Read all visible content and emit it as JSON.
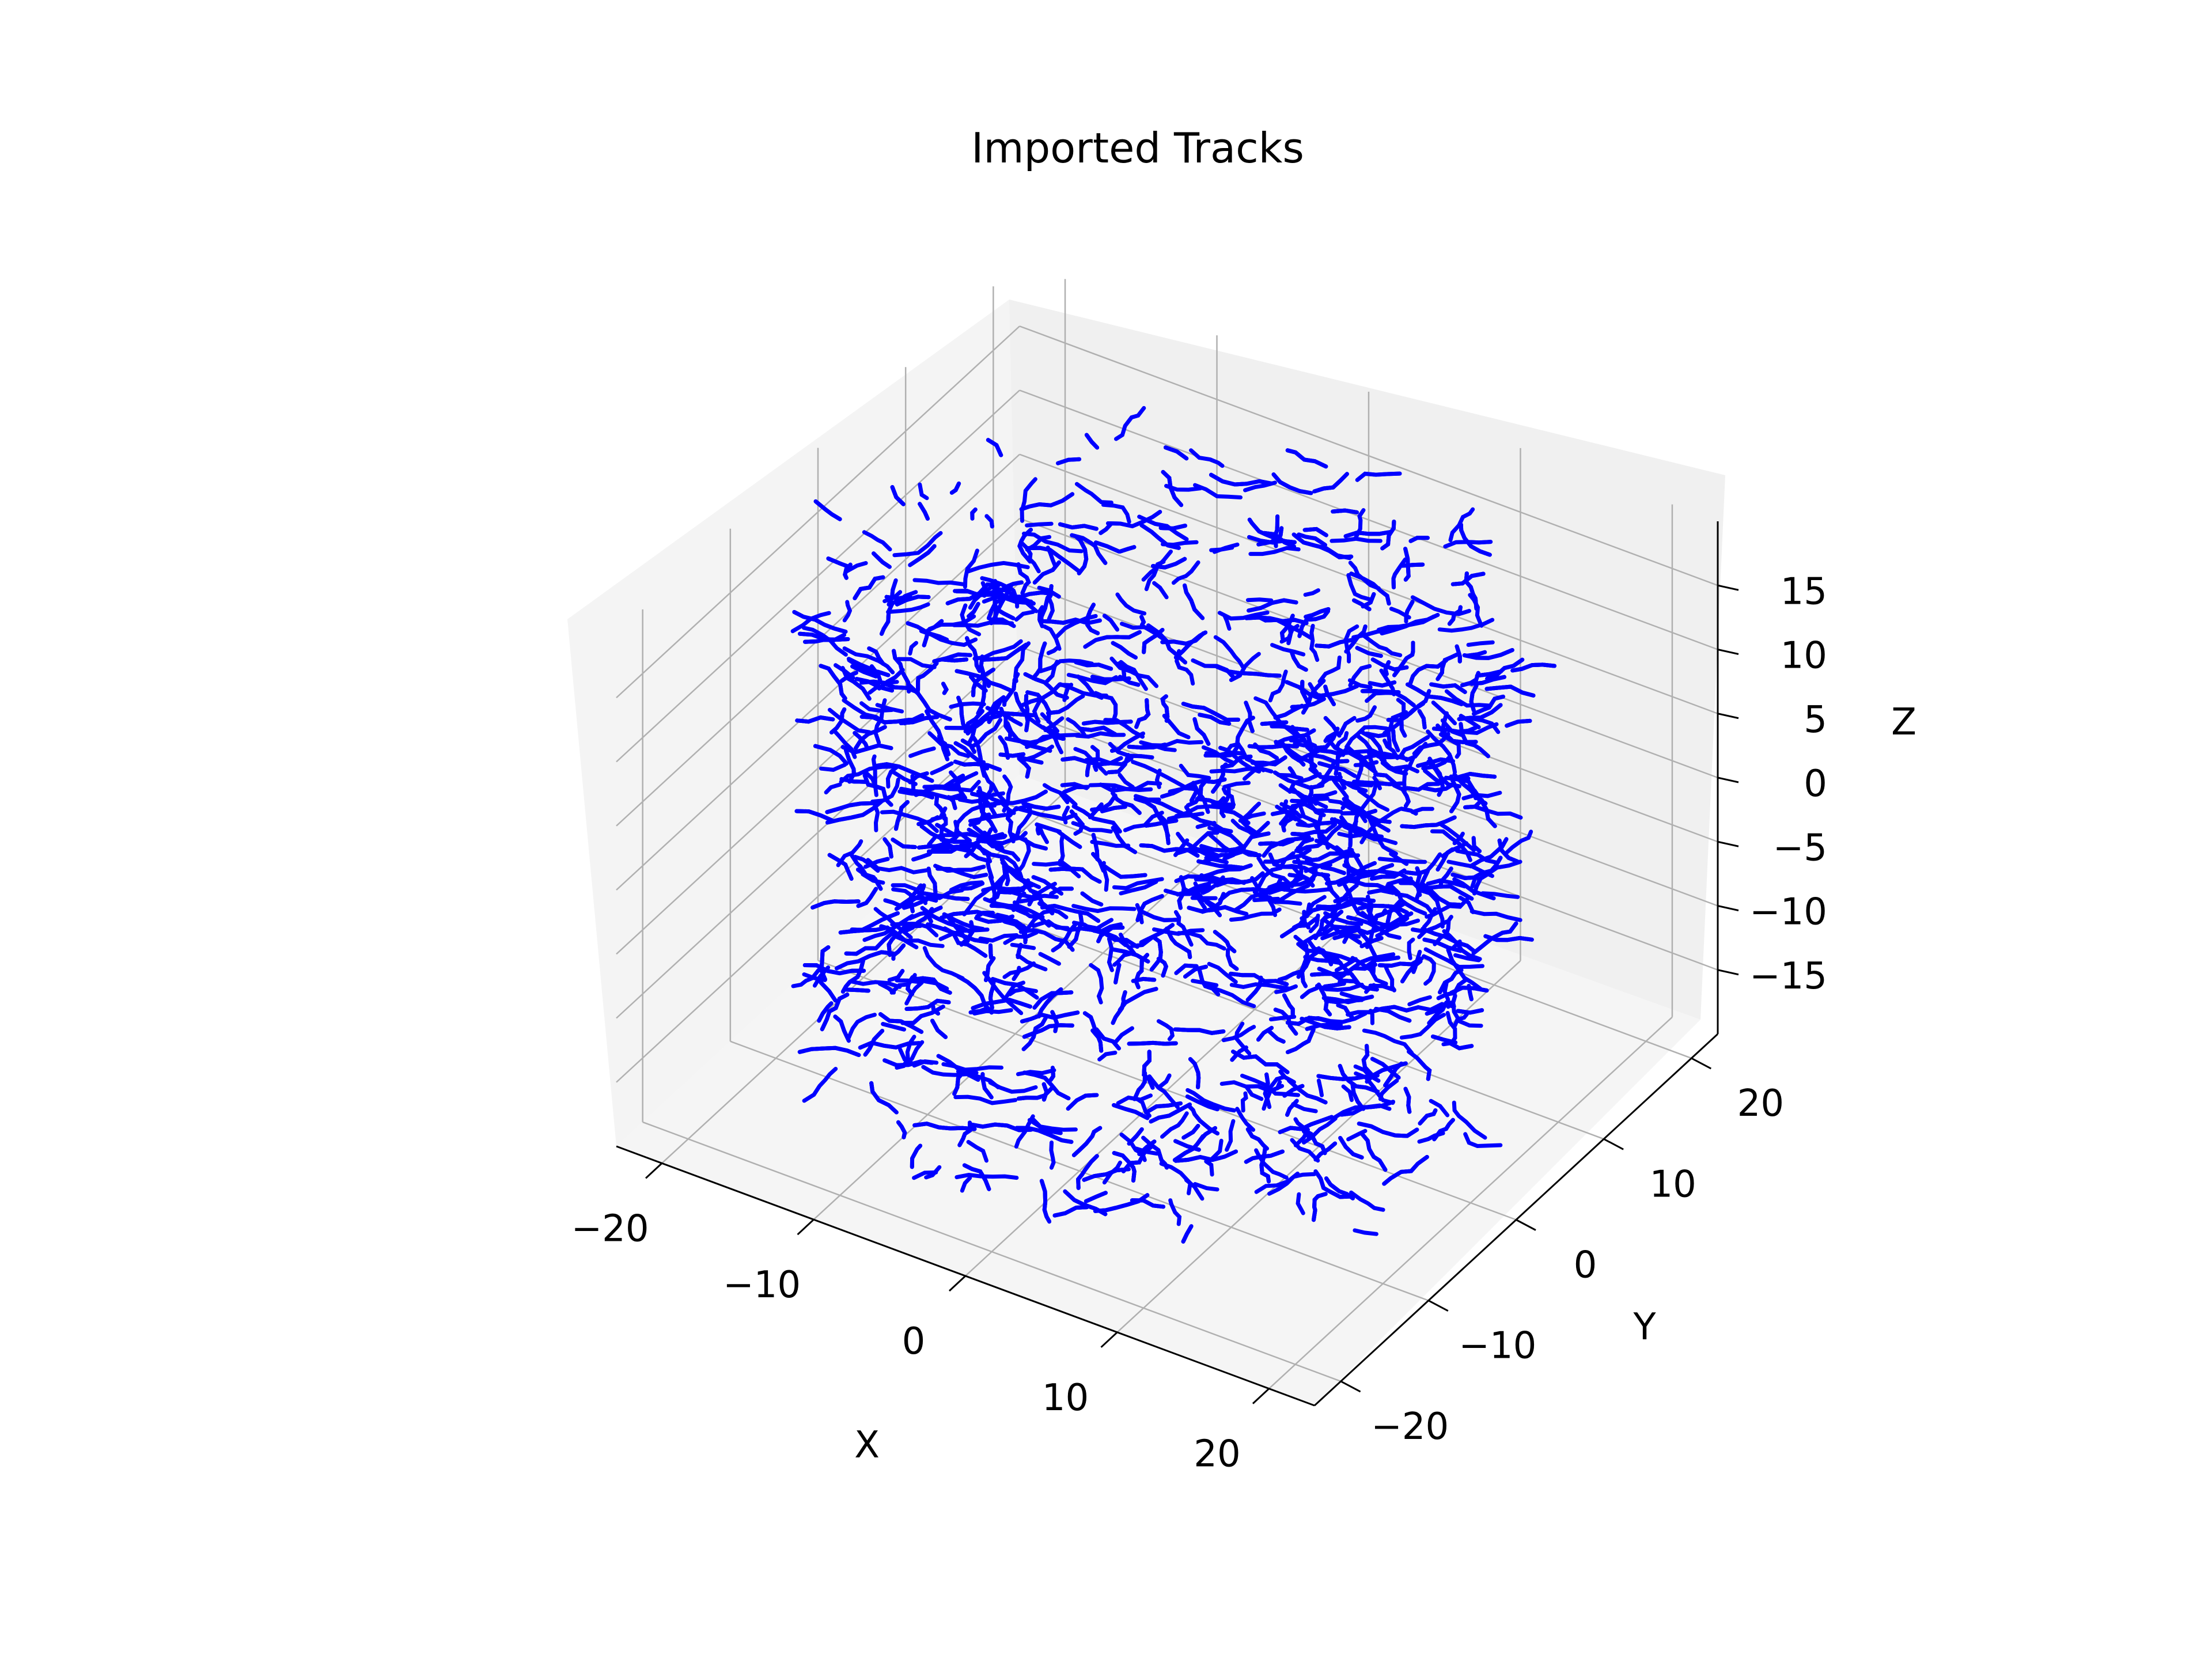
{
  "chart_data": {
    "type": "line3d",
    "title": "Imported Tracks",
    "xlabel": "X",
    "ylabel": "Y",
    "zlabel": "Z",
    "xlim": [
      -23,
      23
    ],
    "ylim": [
      -23,
      23
    ],
    "zlim": [
      -20,
      20
    ],
    "xticks": [
      -20,
      -10,
      0,
      10,
      20
    ],
    "yticks": [
      -20,
      -10,
      0,
      10,
      20
    ],
    "zticks": [
      -15,
      -10,
      -5,
      0,
      5,
      10,
      15
    ],
    "xtick_labels": [
      "−20",
      "−10",
      "0",
      "10",
      "20"
    ],
    "ytick_labels": [
      "−20",
      "−10",
      "0",
      "10",
      "20"
    ],
    "ztick_labels": [
      "−15",
      "−10",
      "−5",
      "0",
      "5",
      "10",
      "15"
    ],
    "series_color": "#0000ff",
    "tracks_description": "Dense cloud of short blue track segments filling a cylinder of radius ~20 centered on the origin, Z spanning about -18 to 18",
    "track_extent": {
      "radius": 20,
      "zmin": -18,
      "zmax": 18
    },
    "grid": true,
    "pane_color": "#f2f2f2"
  }
}
